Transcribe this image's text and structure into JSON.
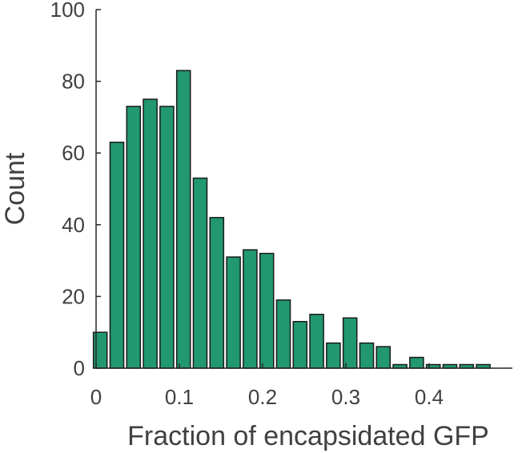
{
  "chart_data": {
    "type": "bar",
    "bin_centers": [
      0.005,
      0.025,
      0.045,
      0.065,
      0.085,
      0.105,
      0.125,
      0.145,
      0.165,
      0.185,
      0.205,
      0.225,
      0.245,
      0.265,
      0.285,
      0.305,
      0.325,
      0.345,
      0.365,
      0.385,
      0.405,
      0.425,
      0.445,
      0.465
    ],
    "values": [
      10,
      63,
      73,
      75,
      73,
      83,
      53,
      42,
      31,
      33,
      32,
      19,
      13,
      15,
      7,
      14,
      7,
      6,
      1,
      3,
      1,
      1,
      1,
      1
    ],
    "xlabel": "Fraction of encapsidated GFP",
    "ylabel": "Count",
    "xlim": [
      0,
      0.5
    ],
    "ylim": [
      0,
      100
    ],
    "xticks": [
      "0",
      "0.1",
      "0.2",
      "0.3",
      "0.4"
    ],
    "yticks": [
      "0",
      "20",
      "40",
      "60",
      "80",
      "100"
    ],
    "grid": false,
    "bar_color": "#21986f"
  }
}
